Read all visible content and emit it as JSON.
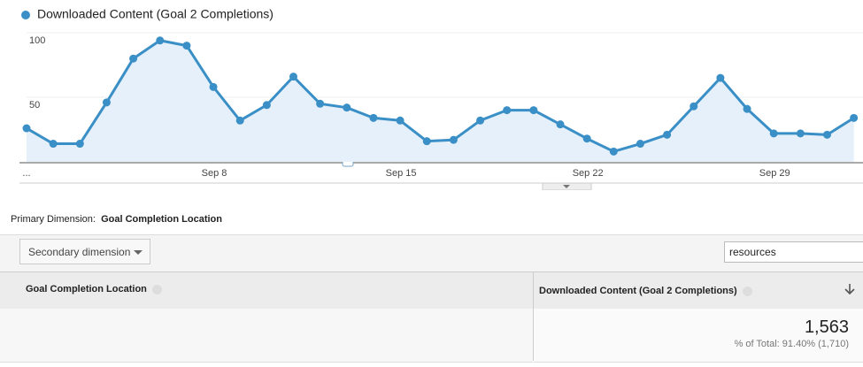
{
  "chart_data": {
    "type": "line",
    "series": [
      {
        "name": "Downloaded Content (Goal 2 Completions)",
        "color": "#3a8fc6",
        "values": [
          26,
          14,
          14,
          46,
          80,
          94,
          90,
          58,
          32,
          44,
          66,
          45,
          42,
          34,
          32,
          16,
          17,
          32,
          40,
          40,
          29,
          18,
          8,
          14,
          21,
          43,
          65,
          41,
          22,
          22,
          21,
          34
        ]
      }
    ],
    "categories": [
      "...",
      null,
      null,
      null,
      null,
      null,
      null,
      "Sep 8",
      null,
      null,
      null,
      null,
      null,
      null,
      "Sep 15",
      null,
      null,
      null,
      null,
      null,
      null,
      "Sep 22",
      null,
      null,
      null,
      null,
      null,
      null,
      "Sep 29",
      null,
      null,
      null
    ],
    "ylim": [
      0,
      100
    ],
    "yticks": [
      50,
      100
    ],
    "grid": true,
    "area": true
  },
  "primary_dimension": {
    "label": "Primary Dimension:",
    "value": "Goal Completion Location"
  },
  "secondary_dimension": "Secondary dimension",
  "search": "resources",
  "table": {
    "columns": [
      "Goal Completion Location",
      "Downloaded Content (Goal 2 Completions)"
    ],
    "total": {
      "value": "1,563",
      "note": "% of Total: 91.40% (1,710)"
    }
  }
}
